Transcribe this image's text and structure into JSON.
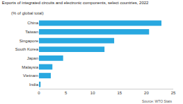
{
  "chart_data": {
    "type": "bar",
    "orientation": "horizontal",
    "title": "Exports of integrated circuits and electronic components, select countries, 2022",
    "subtitle": "(% of global total)",
    "source": "Source: WTO Stats",
    "categories": [
      "China",
      "Taiwan",
      "Singapore",
      "South Korea",
      "Japan",
      "Malaysia",
      "Vietnam",
      "India"
    ],
    "values": [
      22.8,
      20.5,
      14,
      12.2,
      4.5,
      2.5,
      2.2,
      0.3
    ],
    "color": "#29a8e0",
    "xlim": [
      0,
      25
    ],
    "xticks": [
      0,
      5,
      10,
      15,
      20,
      25
    ],
    "grid": false
  }
}
